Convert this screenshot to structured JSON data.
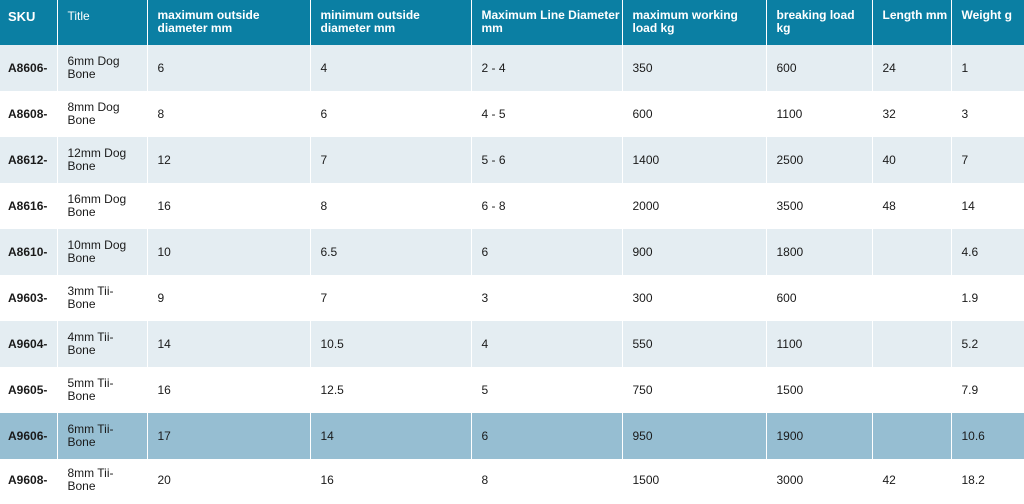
{
  "headers": {
    "sku": "SKU",
    "title": "Title",
    "max_od": "maximum outside diameter mm",
    "min_od": "minimum outside diameter mm",
    "max_line": "Maximum Line Diameter mm",
    "mwl": "maximum working load kg",
    "breaking": "breaking load kg",
    "length": "Length mm",
    "weight": "Weight g"
  },
  "rows": [
    {
      "sku": "A8606-",
      "title": "6mm Dog Bone",
      "max_od": "6",
      "min_od": "4",
      "max_line": "2 - 4",
      "mwl": "350",
      "breaking": "600",
      "length": "24",
      "weight": "1"
    },
    {
      "sku": "A8608-",
      "title": "8mm Dog Bone",
      "max_od": "8",
      "min_od": "6",
      "max_line": "4 - 5",
      "mwl": "600",
      "breaking": "1100",
      "length": "32",
      "weight": "3"
    },
    {
      "sku": "A8612-",
      "title": "12mm Dog Bone",
      "max_od": "12",
      "min_od": "7",
      "max_line": "5 - 6",
      "mwl": "1400",
      "breaking": "2500",
      "length": "40",
      "weight": "7"
    },
    {
      "sku": "A8616-",
      "title": "16mm Dog Bone",
      "max_od": "16",
      "min_od": "8",
      "max_line": "6 - 8",
      "mwl": "2000",
      "breaking": "3500",
      "length": "48",
      "weight": "14"
    },
    {
      "sku": "A8610-",
      "title": "10mm Dog Bone",
      "max_od": "10",
      "min_od": "6.5",
      "max_line": "6",
      "mwl": "900",
      "breaking": "1800",
      "length": "",
      "weight": "4.6"
    },
    {
      "sku": "A9603-",
      "title": "3mm Tii-Bone",
      "max_od": "9",
      "min_od": "7",
      "max_line": "3",
      "mwl": "300",
      "breaking": "600",
      "length": "",
      "weight": "1.9"
    },
    {
      "sku": "A9604-",
      "title": "4mm Tii-Bone",
      "max_od": "14",
      "min_od": "10.5",
      "max_line": "4",
      "mwl": "550",
      "breaking": "1100",
      "length": "",
      "weight": "5.2"
    },
    {
      "sku": "A9605-",
      "title": "5mm Tii-Bone",
      "max_od": "16",
      "min_od": "12.5",
      "max_line": "5",
      "mwl": "750",
      "breaking": "1500",
      "length": "",
      "weight": "7.9"
    },
    {
      "sku": "A9606-",
      "title": "6mm Tii-Bone",
      "max_od": "17",
      "min_od": "14",
      "max_line": "6",
      "mwl": "950",
      "breaking": "1900",
      "length": "",
      "weight": "10.6"
    },
    {
      "sku": "A9608-",
      "title": "8mm Tii-Bone",
      "max_od": "20",
      "min_od": "16",
      "max_line": "8",
      "mwl": "1500",
      "breaking": "3000",
      "length": "42",
      "weight": "18.2"
    }
  ],
  "colors": {
    "header_bg": "#0b7fa3",
    "row_odd": "#e4edf2",
    "row_even": "#ffffff",
    "row_selected": "#96bed2"
  }
}
